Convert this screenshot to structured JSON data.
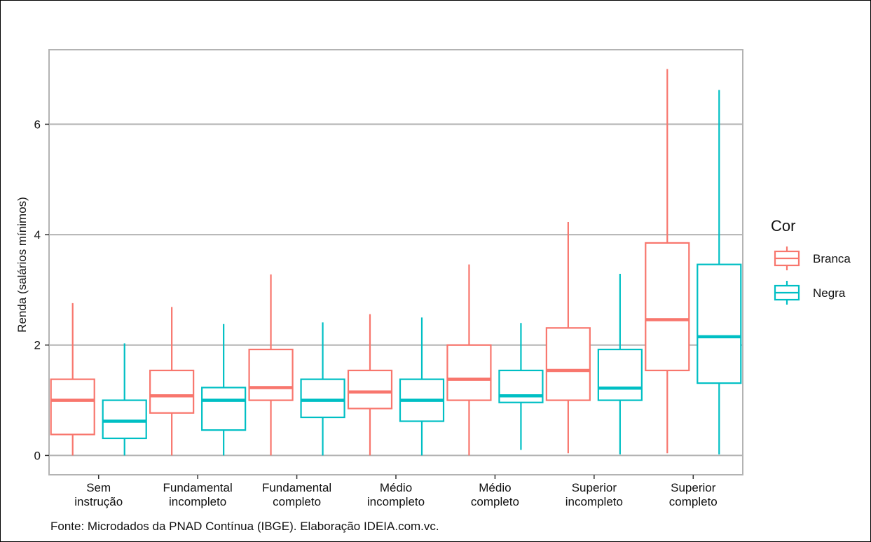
{
  "chart_data": {
    "type": "boxplot",
    "ylabel": "Renda (salários mínimos)",
    "ylim": [
      -0.35,
      7.35
    ],
    "yticks": [
      "0",
      "2",
      "4",
      "6"
    ],
    "grid": true,
    "legend": {
      "title": "Cor",
      "position": "right"
    },
    "caption": "Fonte: Microdados da PNAD Contínua (IBGE). Elaboração IDEIA.com.vc.",
    "categories": [
      [
        "Sem",
        "instrução"
      ],
      [
        "Fundamental",
        "incompleto"
      ],
      [
        "Fundamental",
        "completo"
      ],
      [
        "Médio",
        "incompleto"
      ],
      [
        "Médio",
        "completo"
      ],
      [
        "Superior",
        "incompleto"
      ],
      [
        "Superior",
        "completo"
      ]
    ],
    "series": [
      {
        "name": "Branca",
        "color": "#F8766D",
        "boxes": [
          {
            "min": 0.0,
            "q1": 0.38,
            "median": 1.0,
            "q3": 1.38,
            "max": 2.76
          },
          {
            "min": 0.0,
            "q1": 0.77,
            "median": 1.08,
            "q3": 1.54,
            "max": 2.69
          },
          {
            "min": 0.0,
            "q1": 1.0,
            "median": 1.23,
            "q3": 1.92,
            "max": 3.28
          },
          {
            "min": 0.0,
            "q1": 0.85,
            "median": 1.15,
            "q3": 1.54,
            "max": 2.56
          },
          {
            "min": 0.0,
            "q1": 1.0,
            "median": 1.38,
            "q3": 2.0,
            "max": 3.46
          },
          {
            "min": 0.04,
            "q1": 1.0,
            "median": 1.54,
            "q3": 2.31,
            "max": 4.23
          },
          {
            "min": 0.04,
            "q1": 1.54,
            "median": 2.46,
            "q3": 3.85,
            "max": 7.0
          }
        ]
      },
      {
        "name": "Negra",
        "color": "#00BFC4",
        "boxes": [
          {
            "min": 0.0,
            "q1": 0.31,
            "median": 0.62,
            "q3": 1.0,
            "max": 2.03
          },
          {
            "min": 0.0,
            "q1": 0.46,
            "median": 1.0,
            "q3": 1.23,
            "max": 2.38
          },
          {
            "min": 0.0,
            "q1": 0.69,
            "median": 1.0,
            "q3": 1.38,
            "max": 2.41
          },
          {
            "min": 0.0,
            "q1": 0.62,
            "median": 1.0,
            "q3": 1.38,
            "max": 2.5
          },
          {
            "min": 0.1,
            "q1": 0.96,
            "median": 1.08,
            "q3": 1.54,
            "max": 2.4
          },
          {
            "min": 0.02,
            "q1": 1.0,
            "median": 1.22,
            "q3": 1.92,
            "max": 3.29
          },
          {
            "min": 0.02,
            "q1": 1.31,
            "median": 2.15,
            "q3": 3.46,
            "max": 6.62
          }
        ]
      }
    ]
  }
}
